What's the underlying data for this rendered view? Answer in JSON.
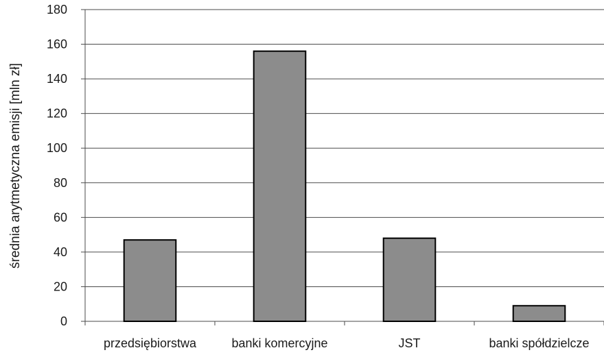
{
  "chart_data": {
    "type": "bar",
    "title": "",
    "xlabel": "",
    "ylabel": "średnia arytmetyczna emisji [mln zł]",
    "categories": [
      "przedsiębiorstwa",
      "banki komercyjne",
      "JST",
      "banki spółdzielcze"
    ],
    "values": [
      47,
      156,
      48,
      9
    ],
    "ylim": [
      0,
      180
    ],
    "yticks": [
      "0",
      "20",
      "40",
      "60",
      "80",
      "100",
      "120",
      "140",
      "160",
      "180"
    ],
    "grid": true,
    "legend": "none",
    "bar_color": "#8c8c8c",
    "bar_edge_color": "#000000"
  }
}
